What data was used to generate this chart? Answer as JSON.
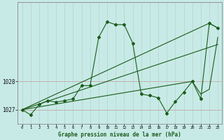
{
  "title": "Graphe pression niveau de la mer (hPa)",
  "bg_color": "#c8eae6",
  "line_color": "#1a5c1a",
  "grid_color_v": "#b8d8d0",
  "grid_color_h": "#c4a8a8",
  "ylim": [
    1026.5,
    1030.8
  ],
  "xlim": [
    -0.5,
    23.5
  ],
  "yticks": [
    1027,
    1028
  ],
  "xticks": [
    0,
    1,
    2,
    3,
    4,
    5,
    6,
    7,
    8,
    9,
    10,
    11,
    12,
    13,
    14,
    15,
    16,
    17,
    18,
    19,
    20,
    21,
    22,
    23
  ],
  "series_main_x": [
    0,
    1,
    2,
    3,
    4,
    5,
    6,
    7,
    8,
    9,
    10,
    11,
    12,
    13,
    14,
    15,
    16,
    17,
    18,
    19,
    20,
    21,
    22,
    23
  ],
  "series_main_y": [
    1027.0,
    1026.82,
    1027.18,
    1027.32,
    1027.27,
    1027.32,
    1027.38,
    1027.85,
    1027.85,
    1029.55,
    1030.1,
    1030.0,
    1030.0,
    1029.35,
    1027.55,
    1027.5,
    1027.42,
    1026.88,
    1027.28,
    1027.62,
    1028.0,
    1027.38,
    1030.05,
    1029.88
  ],
  "trend1_x": [
    0,
    22,
    23
  ],
  "trend1_y": [
    1027.0,
    1030.05,
    1029.88
  ],
  "trend2_x": [
    0,
    20,
    21,
    22,
    23
  ],
  "trend2_y": [
    1027.0,
    1028.0,
    1027.55,
    1027.72,
    1029.55
  ],
  "trend3_x": [
    0,
    23
  ],
  "trend3_y": [
    1027.0,
    1029.3
  ]
}
